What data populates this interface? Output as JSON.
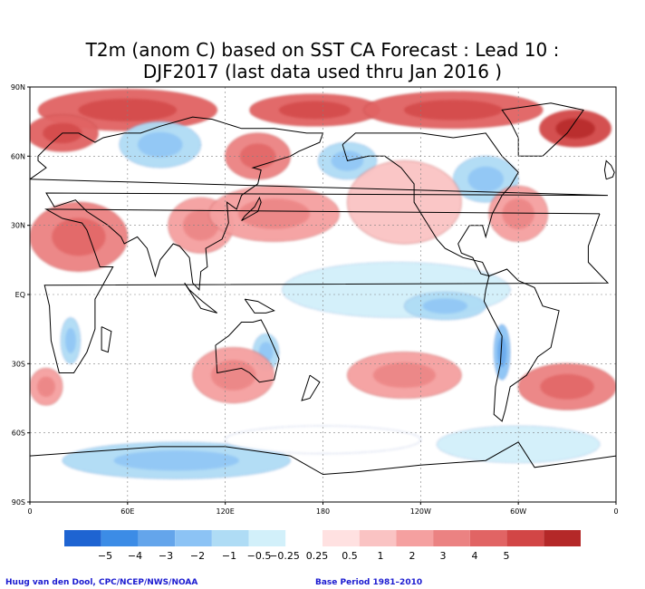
{
  "title": {
    "line1": "T2m (anom C) based on SST CA Forecast : Lead 10 :",
    "line2": "DJF2017 (last data used thru Jan 2016 )"
  },
  "map": {
    "lat_labels": [
      "90N",
      "60N",
      "30N",
      "EQ",
      "30S",
      "60S",
      "90S"
    ],
    "lon_labels": [
      "0",
      "60E",
      "120E",
      "180",
      "120W",
      "60W",
      "0"
    ],
    "lon_range_east": [
      0,
      360
    ],
    "lat_range": [
      -90,
      90
    ],
    "anomaly_regions": [
      {
        "lon": 60,
        "lat": 80,
        "level": 3,
        "rx": 55,
        "ry": 9
      },
      {
        "lon": 175,
        "lat": 80,
        "level": 3,
        "rx": 40,
        "ry": 7
      },
      {
        "lon": 260,
        "lat": 80,
        "level": 3,
        "rx": 55,
        "ry": 8
      },
      {
        "lon": 335,
        "lat": 72,
        "level": 4,
        "rx": 22,
        "ry": 8
      },
      {
        "lon": 20,
        "lat": 70,
        "level": 3,
        "rx": 22,
        "ry": 8
      },
      {
        "lon": 140,
        "lat": 60,
        "level": 2,
        "rx": 20,
        "ry": 10
      },
      {
        "lon": 80,
        "lat": 65,
        "level": -1,
        "rx": 25,
        "ry": 10
      },
      {
        "lon": 195,
        "lat": 58,
        "level": -1,
        "rx": 18,
        "ry": 8
      },
      {
        "lon": 280,
        "lat": 50,
        "level": -1,
        "rx": 20,
        "ry": 10
      },
      {
        "lon": 300,
        "lat": 35,
        "level": 1,
        "rx": 18,
        "ry": 12
      },
      {
        "lon": 30,
        "lat": 25,
        "level": 2,
        "rx": 30,
        "ry": 15
      },
      {
        "lon": 105,
        "lat": 30,
        "level": 1,
        "rx": 20,
        "ry": 12
      },
      {
        "lon": 150,
        "lat": 35,
        "level": 1,
        "rx": 40,
        "ry": 12
      },
      {
        "lon": 230,
        "lat": 40,
        "level": 0.5,
        "rx": 35,
        "ry": 18
      },
      {
        "lon": 225,
        "lat": 2,
        "level": -0.5,
        "rx": 70,
        "ry": 12
      },
      {
        "lon": 255,
        "lat": -5,
        "level": -1,
        "rx": 25,
        "ry": 6
      },
      {
        "lon": 25,
        "lat": -20,
        "level": -1,
        "rx": 6,
        "ry": 10
      },
      {
        "lon": 145,
        "lat": -25,
        "level": -1,
        "rx": 8,
        "ry": 8
      },
      {
        "lon": 290,
        "lat": -25,
        "level": -2,
        "rx": 5,
        "ry": 12
      },
      {
        "lon": 125,
        "lat": -35,
        "level": 1,
        "rx": 25,
        "ry": 12
      },
      {
        "lon": 230,
        "lat": -35,
        "level": 1,
        "rx": 35,
        "ry": 10
      },
      {
        "lon": 330,
        "lat": -40,
        "level": 2,
        "rx": 30,
        "ry": 10
      },
      {
        "lon": 10,
        "lat": -40,
        "level": 1,
        "rx": 10,
        "ry": 8
      },
      {
        "lon": 90,
        "lat": -72,
        "level": -1,
        "rx": 70,
        "ry": 8
      },
      {
        "lon": 300,
        "lat": -65,
        "level": -0.5,
        "rx": 50,
        "ry": 8
      },
      {
        "lon": 180,
        "lat": -63,
        "level": -0.25,
        "rx": 60,
        "ry": 6
      }
    ]
  },
  "colorbar": {
    "colors": [
      "#1e64d2",
      "#3c8ce6",
      "#64a5eb",
      "#8cc3f5",
      "#afdcf5",
      "#d2f0fa",
      "#ffffff",
      "#ffe1e1",
      "#fac3c3",
      "#f5a0a0",
      "#eb8282",
      "#e16464",
      "#d24646",
      "#b42828"
    ],
    "labels": [
      "−5",
      "−4",
      "−3",
      "−2",
      "−1",
      "−0.5",
      "−0.25",
      "0.25",
      "0.5",
      "1",
      "2",
      "3",
      "4",
      "5"
    ]
  },
  "credits": {
    "left": "Huug van den Dool, CPC/NCEP/NWS/NOAA",
    "right": "Base Period 1981–2010"
  }
}
